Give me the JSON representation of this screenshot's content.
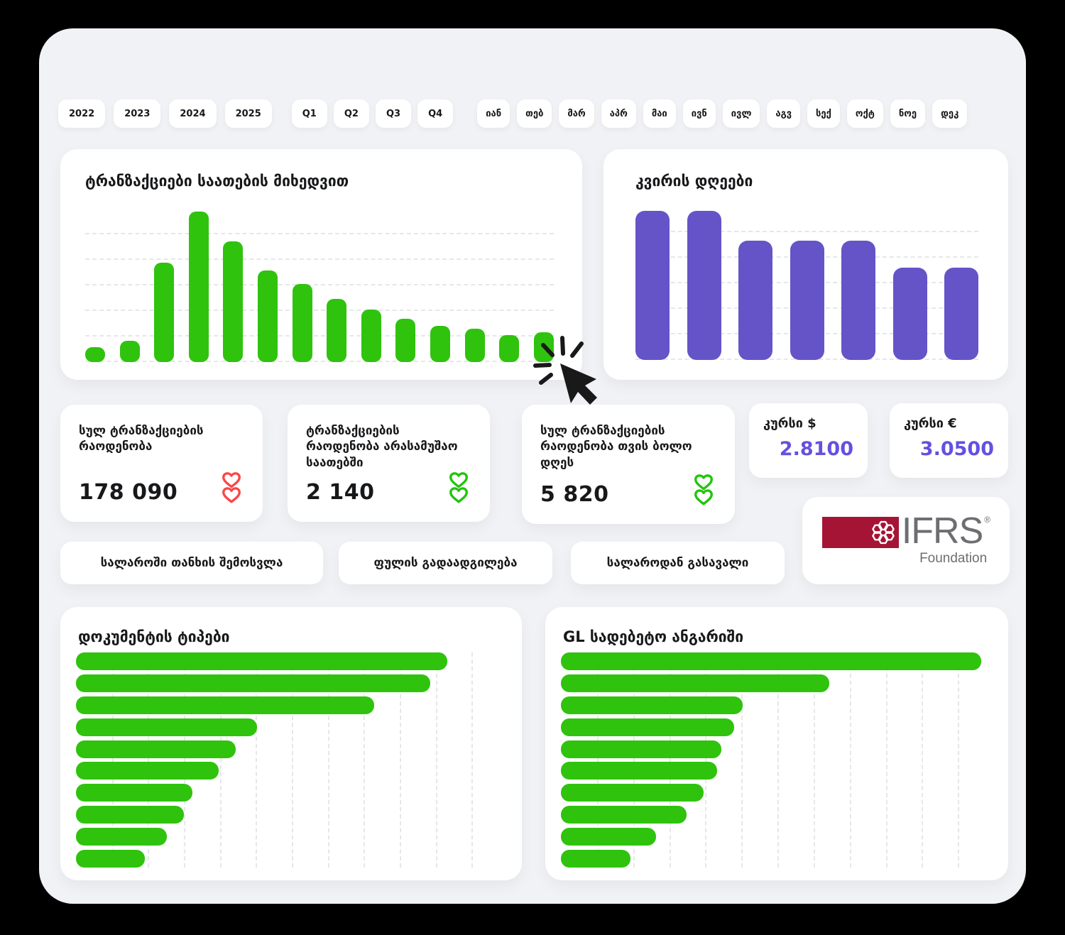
{
  "colors": {
    "panel": "#f1f2f5",
    "green": "#2fc30d",
    "green_icon": "#21c50b",
    "purple": "#6454c8",
    "purple_text": "#6450e0",
    "red": "#fb4748",
    "ifrs_red": "#a51434",
    "grid": "#e6e7ea"
  },
  "icons": {
    "trend_down": "double-heart-chevron-down",
    "cursor": "click-cursor-burst",
    "ifrs_flower": "hexagon-rosette"
  },
  "filters": {
    "years": [
      "2022",
      "2023",
      "2024",
      "2025"
    ],
    "quarters": [
      "Q1",
      "Q2",
      "Q3",
      "Q4"
    ],
    "months": [
      "იან",
      "თებ",
      "მარ",
      "აპრ",
      "მაი",
      "ივნ",
      "ივლ",
      "აგვ",
      "სექ",
      "ოქტ",
      "ნოე",
      "დეკ"
    ]
  },
  "chart_data": [
    {
      "id": "transactions-by-hours",
      "type": "bar",
      "orientation": "vertical",
      "title": "ტრანზაქციები საათების მიხედვით",
      "color": "#2fc30d",
      "values_pct": [
        10,
        14,
        66,
        100,
        80,
        61,
        52,
        42,
        35,
        29,
        24,
        22,
        18,
        20
      ],
      "axis_labels": "none",
      "grid": "horizontal-dashed",
      "gridline_count": 6
    },
    {
      "id": "weekdays",
      "type": "bar",
      "orientation": "vertical",
      "title": "კვირის დღეები",
      "color": "#6454c8",
      "values_pct": [
        100,
        100,
        80,
        80,
        80,
        62,
        62
      ],
      "axis_labels": "none",
      "grid": "horizontal-dashed",
      "gridline_count": 6
    },
    {
      "id": "document-types",
      "type": "bar",
      "orientation": "horizontal",
      "title": "დოკუმენტის ტიპები",
      "color": "#2fc30d",
      "values_pct": [
        86,
        82,
        69,
        42,
        37,
        33,
        27,
        25,
        21,
        16
      ],
      "axis_labels": "none",
      "grid": "vertical-dashed",
      "gridline_count": 11
    },
    {
      "id": "gl-debit-account",
      "type": "bar",
      "orientation": "horizontal",
      "title": "GL სადებეტო ანგარიში",
      "color": "#2fc30d",
      "values_pct": [
        97,
        62,
        42,
        40,
        37,
        36,
        33,
        29,
        22,
        16
      ],
      "axis_labels": "none",
      "grid": "vertical-dashed",
      "gridline_count": 11
    }
  ],
  "stats": [
    {
      "label": "სულ ტრანზაქციების რაოდენობა",
      "value": "178 090",
      "trend": "down",
      "trend_color_name": "red"
    },
    {
      "label": "ტრანზაქციების რაოდენობა არასამუშაო საათებში",
      "value": "2 140",
      "trend": "down",
      "trend_color_name": "green"
    },
    {
      "label": "სულ ტრანზაქციების რაოდენობა თვის ბოლო დღეს",
      "value": "5 820",
      "trend": "down",
      "trend_color_name": "green"
    }
  ],
  "currency": [
    {
      "label": "კურსი $",
      "value": "2.8100"
    },
    {
      "label": "კურსი €",
      "value": "3.0500"
    }
  ],
  "actions": [
    {
      "label": "სალაროში თანხის შემოსვლა"
    },
    {
      "label": "ფულის გადაადგილება"
    },
    {
      "label": "სალაროდან გასავალი"
    }
  ],
  "ifrs": {
    "brand": "IFRS",
    "reg": "®",
    "sub": "Foundation"
  }
}
